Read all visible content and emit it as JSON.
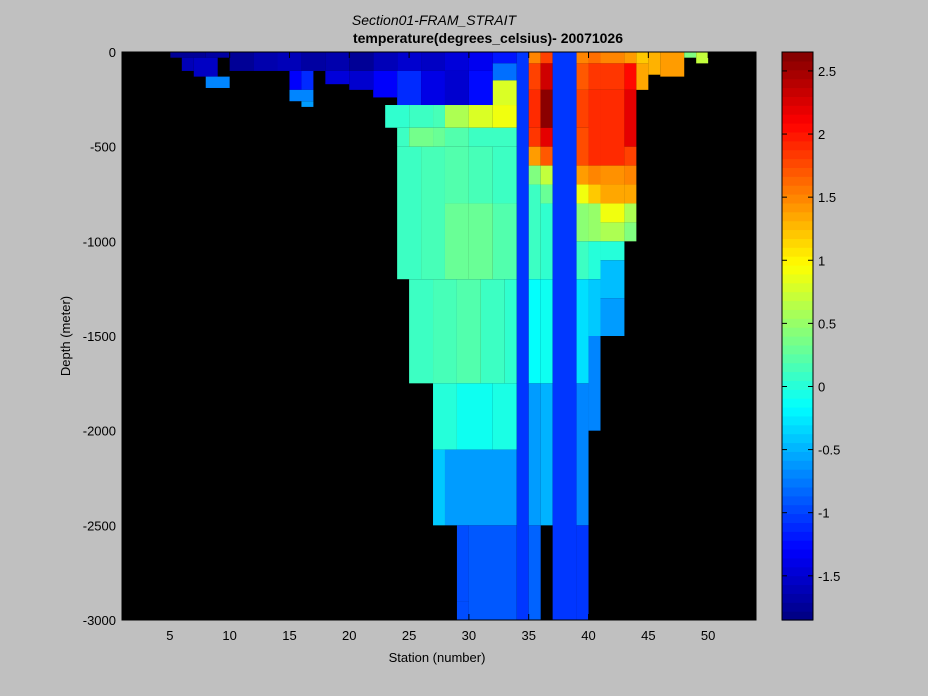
{
  "chart_data": {
    "type": "heatmap",
    "title": "Section01-FRAM_STRAIT",
    "subtitle": "temperature(degrees_celsius)- 20071026",
    "xlabel": "Station (number)",
    "ylabel": "Depth (meter)",
    "xlim": [
      1,
      54
    ],
    "ylim": [
      -3000,
      0
    ],
    "xticks": [
      "5",
      "10",
      "15",
      "20",
      "25",
      "30",
      "35",
      "40",
      "45",
      "50"
    ],
    "yticks": [
      "0",
      "-500",
      "-1000",
      "-1500",
      "-2000",
      "-2500",
      "-3000"
    ],
    "colorbar": {
      "range": [
        -1.85,
        2.65
      ],
      "ticks": [
        "2.5",
        "2",
        "1.5",
        "1",
        "0.5",
        "0",
        "-0.5",
        "-1",
        "-1.5"
      ]
    },
    "background_color": "#000000",
    "cells": [
      {
        "x0": 5,
        "x1": 8,
        "y0": -30,
        "y1": 0,
        "v": -1.75
      },
      {
        "x0": 8,
        "x1": 10,
        "y0": -30,
        "y1": 0,
        "v": -1.7
      },
      {
        "x0": 10,
        "x1": 12,
        "y0": -100,
        "y1": 0,
        "v": -1.75
      },
      {
        "x0": 12,
        "x1": 14,
        "y0": -100,
        "y1": 0,
        "v": -1.65
      },
      {
        "x0": 14,
        "x1": 16,
        "y0": -100,
        "y1": 0,
        "v": -1.6
      },
      {
        "x0": 16,
        "x1": 18,
        "y0": -100,
        "y1": 0,
        "v": -1.7
      },
      {
        "x0": 18,
        "x1": 20,
        "y0": -100,
        "y1": 0,
        "v": -1.65
      },
      {
        "x0": 20,
        "x1": 22,
        "y0": -100,
        "y1": 0,
        "v": -1.75
      },
      {
        "x0": 22,
        "x1": 24,
        "y0": -100,
        "y1": 0,
        "v": -1.6
      },
      {
        "x0": 24,
        "x1": 26,
        "y0": -100,
        "y1": 0,
        "v": -1.5
      },
      {
        "x0": 26,
        "x1": 28,
        "y0": -100,
        "y1": 0,
        "v": -1.55
      },
      {
        "x0": 28,
        "x1": 30,
        "y0": -100,
        "y1": 0,
        "v": -1.45
      },
      {
        "x0": 30,
        "x1": 32,
        "y0": -100,
        "y1": 0,
        "v": -1.35
      },
      {
        "x0": 32,
        "x1": 34,
        "y0": -60,
        "y1": 0,
        "v": -1.2
      },
      {
        "x0": 6,
        "x1": 7,
        "y0": -100,
        "y1": -30,
        "v": -1.6
      },
      {
        "x0": 7,
        "x1": 9,
        "y0": -130,
        "y1": -30,
        "v": -1.55
      },
      {
        "x0": 8,
        "x1": 10,
        "y0": -190,
        "y1": -130,
        "v": -0.7
      },
      {
        "x0": 15,
        "x1": 16,
        "y0": -200,
        "y1": -100,
        "v": -1.3
      },
      {
        "x0": 16,
        "x1": 17,
        "y0": -200,
        "y1": -100,
        "v": -1.1
      },
      {
        "x0": 15,
        "x1": 17,
        "y0": -260,
        "y1": -200,
        "v": -0.7
      },
      {
        "x0": 16,
        "x1": 17,
        "y0": -290,
        "y1": -260,
        "v": -0.6
      },
      {
        "x0": 18,
        "x1": 20,
        "y0": -170,
        "y1": -100,
        "v": -1.45
      },
      {
        "x0": 20,
        "x1": 22,
        "y0": -200,
        "y1": -100,
        "v": -1.5
      },
      {
        "x0": 22,
        "x1": 24,
        "y0": -240,
        "y1": -100,
        "v": -1.3
      },
      {
        "x0": 24,
        "x1": 26,
        "y0": -280,
        "y1": -100,
        "v": -1.1
      },
      {
        "x0": 26,
        "x1": 28,
        "y0": -280,
        "y1": -100,
        "v": -1.4
      },
      {
        "x0": 28,
        "x1": 30,
        "y0": -280,
        "y1": -100,
        "v": -1.5
      },
      {
        "x0": 30,
        "x1": 32,
        "y0": -280,
        "y1": -100,
        "v": -1.25
      },
      {
        "x0": 32,
        "x1": 34,
        "y0": -150,
        "y1": -60,
        "v": -0.8
      },
      {
        "x0": 32,
        "x1": 34,
        "y0": -280,
        "y1": -150,
        "v": 0.8
      },
      {
        "x0": 23,
        "x1": 25,
        "y0": -400,
        "y1": -280,
        "v": 0.05
      },
      {
        "x0": 25,
        "x1": 27,
        "y0": -400,
        "y1": -280,
        "v": 0.1
      },
      {
        "x0": 27,
        "x1": 28,
        "y0": -400,
        "y1": -280,
        "v": 0.15
      },
      {
        "x0": 28,
        "x1": 30,
        "y0": -400,
        "y1": -280,
        "v": 0.6
      },
      {
        "x0": 30,
        "x1": 32,
        "y0": -400,
        "y1": -280,
        "v": 0.8
      },
      {
        "x0": 32,
        "x1": 34,
        "y0": -400,
        "y1": -280,
        "v": 0.9
      },
      {
        "x0": 24,
        "x1": 25,
        "y0": -500,
        "y1": -400,
        "v": 0.1
      },
      {
        "x0": 25,
        "x1": 27,
        "y0": -500,
        "y1": -400,
        "v": 0.35
      },
      {
        "x0": 27,
        "x1": 28,
        "y0": -500,
        "y1": -400,
        "v": 0.3
      },
      {
        "x0": 28,
        "x1": 30,
        "y0": -500,
        "y1": -400,
        "v": 0.2
      },
      {
        "x0": 30,
        "x1": 34,
        "y0": -500,
        "y1": -400,
        "v": 0.1
      },
      {
        "x0": 24,
        "x1": 26,
        "y0": -1200,
        "y1": -500,
        "v": 0.1
      },
      {
        "x0": 26,
        "x1": 28,
        "y0": -1200,
        "y1": -500,
        "v": 0.15
      },
      {
        "x0": 28,
        "x1": 30,
        "y0": -800,
        "y1": -500,
        "v": 0.2
      },
      {
        "x0": 28,
        "x1": 30,
        "y0": -1200,
        "y1": -800,
        "v": 0.3
      },
      {
        "x0": 30,
        "x1": 32,
        "y0": -800,
        "y1": -500,
        "v": 0.15
      },
      {
        "x0": 30,
        "x1": 32,
        "y0": -1200,
        "y1": -800,
        "v": 0.3
      },
      {
        "x0": 32,
        "x1": 34,
        "y0": -800,
        "y1": -500,
        "v": 0.1
      },
      {
        "x0": 32,
        "x1": 34,
        "y0": -1200,
        "y1": -800,
        "v": 0.2
      },
      {
        "x0": 25,
        "x1": 27,
        "y0": -1750,
        "y1": -1200,
        "v": 0.1
      },
      {
        "x0": 27,
        "x1": 29,
        "y0": -1750,
        "y1": -1200,
        "v": 0.15
      },
      {
        "x0": 29,
        "x1": 31,
        "y0": -1750,
        "y1": -1200,
        "v": 0.2
      },
      {
        "x0": 31,
        "x1": 33,
        "y0": -1750,
        "y1": -1200,
        "v": 0.1
      },
      {
        "x0": 33,
        "x1": 34,
        "y0": -1750,
        "y1": -1200,
        "v": 0.05
      },
      {
        "x0": 27,
        "x1": 29,
        "y0": -2100,
        "y1": -1750,
        "v": 0.0
      },
      {
        "x0": 29,
        "x1": 32,
        "y0": -2100,
        "y1": -1750,
        "v": -0.1
      },
      {
        "x0": 32,
        "x1": 34,
        "y0": -2100,
        "y1": -1750,
        "v": -0.05
      },
      {
        "x0": 27,
        "x1": 28,
        "y0": -2500,
        "y1": -2100,
        "v": -0.4
      },
      {
        "x0": 28,
        "x1": 34,
        "y0": -2500,
        "y1": -2100,
        "v": -0.6
      },
      {
        "x0": 29,
        "x1": 30,
        "y0": -2900,
        "y1": -2500,
        "v": -0.95
      },
      {
        "x0": 30,
        "x1": 34,
        "y0": -3000,
        "y1": -2500,
        "v": -0.9
      },
      {
        "x0": 29,
        "x1": 30,
        "y0": -3000,
        "y1": -2900,
        "v": -0.95
      },
      {
        "x0": 34,
        "x1": 35,
        "y0": -3000,
        "y1": 0,
        "v": -1.05
      },
      {
        "x0": 35,
        "x1": 36,
        "y0": -60,
        "y1": 0,
        "v": 1.5
      },
      {
        "x0": 35,
        "x1": 36,
        "y0": -200,
        "y1": -60,
        "v": 1.8
      },
      {
        "x0": 35,
        "x1": 36,
        "y0": -400,
        "y1": -200,
        "v": 1.9
      },
      {
        "x0": 35,
        "x1": 36,
        "y0": -500,
        "y1": -400,
        "v": 1.85
      },
      {
        "x0": 35,
        "x1": 36,
        "y0": -600,
        "y1": -500,
        "v": 1.4
      },
      {
        "x0": 35,
        "x1": 36,
        "y0": -700,
        "y1": -600,
        "v": 0.4
      },
      {
        "x0": 35,
        "x1": 36,
        "y0": -1200,
        "y1": -700,
        "v": 0.1
      },
      {
        "x0": 35,
        "x1": 36,
        "y0": -1750,
        "y1": -1200,
        "v": -0.15
      },
      {
        "x0": 35,
        "x1": 36,
        "y0": -2500,
        "y1": -1750,
        "v": -0.6
      },
      {
        "x0": 35,
        "x1": 36,
        "y0": -3000,
        "y1": -2500,
        "v": -0.85
      },
      {
        "x0": 36,
        "x1": 37,
        "y0": -60,
        "y1": 0,
        "v": 1.8
      },
      {
        "x0": 36,
        "x1": 37,
        "y0": -200,
        "y1": -60,
        "v": 2.3
      },
      {
        "x0": 36,
        "x1": 37,
        "y0": -400,
        "y1": -200,
        "v": 2.6
      },
      {
        "x0": 36,
        "x1": 37,
        "y0": -500,
        "y1": -400,
        "v": 2.2
      },
      {
        "x0": 36,
        "x1": 37,
        "y0": -600,
        "y1": -500,
        "v": 1.7
      },
      {
        "x0": 36,
        "x1": 37,
        "y0": -700,
        "y1": -600,
        "v": 0.7
      },
      {
        "x0": 36,
        "x1": 37,
        "y0": -800,
        "y1": -700,
        "v": 0.3
      },
      {
        "x0": 36,
        "x1": 37,
        "y0": -1200,
        "y1": -800,
        "v": 0.05
      },
      {
        "x0": 36,
        "x1": 37,
        "y0": -1750,
        "y1": -1200,
        "v": -0.1
      },
      {
        "x0": 36,
        "x1": 37,
        "y0": -2500,
        "y1": -1750,
        "v": -0.5
      },
      {
        "x0": 37,
        "x1": 39,
        "y0": -3000,
        "y1": 0,
        "v": -1.05
      },
      {
        "x0": 39,
        "x1": 40,
        "y0": -60,
        "y1": 0,
        "v": 1.5
      },
      {
        "x0": 39,
        "x1": 40,
        "y0": -200,
        "y1": -60,
        "v": 1.7
      },
      {
        "x0": 39,
        "x1": 40,
        "y0": -400,
        "y1": -200,
        "v": 1.8
      },
      {
        "x0": 39,
        "x1": 40,
        "y0": -600,
        "y1": -400,
        "v": 1.75
      },
      {
        "x0": 39,
        "x1": 40,
        "y0": -700,
        "y1": -600,
        "v": 1.4
      },
      {
        "x0": 39,
        "x1": 40,
        "y0": -800,
        "y1": -700,
        "v": 0.9
      },
      {
        "x0": 39,
        "x1": 40,
        "y0": -1000,
        "y1": -800,
        "v": 0.45
      },
      {
        "x0": 39,
        "x1": 40,
        "y0": -1200,
        "y1": -1000,
        "v": 0.1
      },
      {
        "x0": 39,
        "x1": 40,
        "y0": -1750,
        "y1": -1200,
        "v": -0.3
      },
      {
        "x0": 39,
        "x1": 40,
        "y0": -2500,
        "y1": -1750,
        "v": -0.7
      },
      {
        "x0": 39,
        "x1": 40,
        "y0": -3000,
        "y1": -2500,
        "v": -1.05
      },
      {
        "x0": 40,
        "x1": 41,
        "y0": -60,
        "y1": 0,
        "v": 1.6
      },
      {
        "x0": 40,
        "x1": 41,
        "y0": -200,
        "y1": -60,
        "v": 1.85
      },
      {
        "x0": 40,
        "x1": 41,
        "y0": -600,
        "y1": -200,
        "v": 1.9
      },
      {
        "x0": 40,
        "x1": 41,
        "y0": -700,
        "y1": -600,
        "v": 1.5
      },
      {
        "x0": 40,
        "x1": 41,
        "y0": -800,
        "y1": -700,
        "v": 1.2
      },
      {
        "x0": 40,
        "x1": 41,
        "y0": -1000,
        "y1": -800,
        "v": 0.5
      },
      {
        "x0": 40,
        "x1": 41,
        "y0": -1200,
        "y1": -1000,
        "v": 0.0
      },
      {
        "x0": 40,
        "x1": 41,
        "y0": -1500,
        "y1": -1200,
        "v": -0.4
      },
      {
        "x0": 40,
        "x1": 41,
        "y0": -2000,
        "y1": -1500,
        "v": -0.7
      },
      {
        "x0": 41,
        "x1": 43,
        "y0": -60,
        "y1": 0,
        "v": 1.5
      },
      {
        "x0": 41,
        "x1": 43,
        "y0": -200,
        "y1": -60,
        "v": 1.85
      },
      {
        "x0": 41,
        "x1": 43,
        "y0": -600,
        "y1": -200,
        "v": 1.9
      },
      {
        "x0": 41,
        "x1": 43,
        "y0": -700,
        "y1": -600,
        "v": 1.45
      },
      {
        "x0": 41,
        "x1": 43,
        "y0": -800,
        "y1": -700,
        "v": 1.35
      },
      {
        "x0": 41,
        "x1": 43,
        "y0": -900,
        "y1": -800,
        "v": 0.9
      },
      {
        "x0": 41,
        "x1": 43,
        "y0": -1000,
        "y1": -900,
        "v": 0.6
      },
      {
        "x0": 41,
        "x1": 43,
        "y0": -1100,
        "y1": -1000,
        "v": 0.0
      },
      {
        "x0": 41,
        "x1": 43,
        "y0": -1300,
        "y1": -1100,
        "v": -0.45
      },
      {
        "x0": 41,
        "x1": 43,
        "y0": -1500,
        "y1": -1300,
        "v": -0.6
      },
      {
        "x0": 43,
        "x1": 44,
        "y0": -60,
        "y1": 0,
        "v": 1.4
      },
      {
        "x0": 43,
        "x1": 44,
        "y0": -200,
        "y1": -60,
        "v": 2.05
      },
      {
        "x0": 43,
        "x1": 44,
        "y0": -500,
        "y1": -200,
        "v": 2.2
      },
      {
        "x0": 43,
        "x1": 44,
        "y0": -600,
        "y1": -500,
        "v": 1.8
      },
      {
        "x0": 43,
        "x1": 44,
        "y0": -700,
        "y1": -600,
        "v": 1.5
      },
      {
        "x0": 43,
        "x1": 44,
        "y0": -800,
        "y1": -700,
        "v": 1.35
      },
      {
        "x0": 43,
        "x1": 44,
        "y0": -900,
        "y1": -800,
        "v": 0.6
      },
      {
        "x0": 43,
        "x1": 44,
        "y0": -1000,
        "y1": -900,
        "v": 0.4
      },
      {
        "x0": 44,
        "x1": 45,
        "y0": -60,
        "y1": 0,
        "v": 1.2
      },
      {
        "x0": 44,
        "x1": 45,
        "y0": -200,
        "y1": -60,
        "v": 1.35
      },
      {
        "x0": 45,
        "x1": 46,
        "y0": -120,
        "y1": 0,
        "v": 1.3
      },
      {
        "x0": 46,
        "x1": 48,
        "y0": -130,
        "y1": 0,
        "v": 1.4
      },
      {
        "x0": 48,
        "x1": 49,
        "y0": -30,
        "y1": 0,
        "v": 0.4
      },
      {
        "x0": 49,
        "x1": 50,
        "y0": -60,
        "y1": 0,
        "v": 0.7
      }
    ]
  }
}
